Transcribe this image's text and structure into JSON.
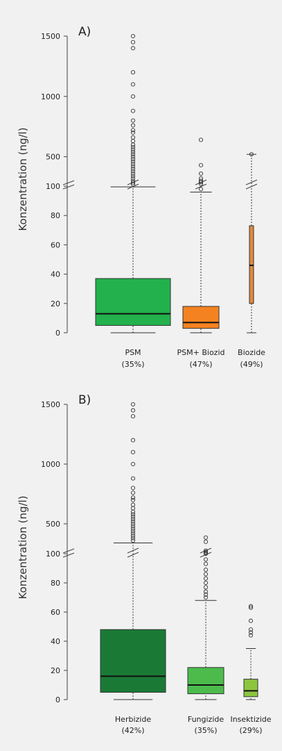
{
  "chart_data": [
    {
      "type": "boxplot",
      "panel_label": "A)",
      "ylabel": "Konzentration (ng/l)",
      "y_axis_broken": true,
      "y_lower_range": [
        0,
        100
      ],
      "y_upper_range": [
        250,
        1500
      ],
      "y_ticks_lower": [
        0,
        20,
        40,
        60,
        80,
        100
      ],
      "y_ticks_upper": [
        500,
        1000,
        1500
      ],
      "y_tick_labels_lower": [
        "0",
        "20",
        "40",
        "60",
        "80",
        "100"
      ],
      "y_tick_labels_upper": [
        "500",
        "1000",
        "1500"
      ],
      "categories": [
        {
          "name": "PSM",
          "percent": "(35%)",
          "color": "#22b14c",
          "min": 0,
          "q1": 5,
          "median": 13,
          "q3": 37,
          "whisker_high": 250,
          "outliers": [
            270,
            285,
            300,
            320,
            340,
            360,
            380,
            400,
            420,
            440,
            460,
            480,
            500,
            520,
            540,
            560,
            580,
            600,
            630,
            660,
            700,
            720,
            760,
            800,
            880,
            1000,
            1100,
            1200,
            1400,
            1450,
            1500
          ]
        },
        {
          "name": "PSM+ Biozid",
          "percent": "(47%)",
          "color": "#f58220",
          "min": 0,
          "q1": 3,
          "median": 7,
          "q3": 18,
          "whisker_high": 96,
          "outliers": [
            98,
            102,
            104,
            107,
            275,
            290,
            300,
            320,
            360,
            430,
            640
          ]
        },
        {
          "name": "Biozide",
          "percent": "(49%)",
          "color": "#e08a3c",
          "min": 0,
          "q1": 20,
          "median": 46,
          "q3": 73,
          "whisker_high": 520,
          "outliers": [
            520
          ]
        }
      ]
    },
    {
      "type": "boxplot",
      "panel_label": "B)",
      "ylabel": "Konzentration (ng/l)",
      "y_axis_broken": true,
      "y_lower_range": [
        0,
        100
      ],
      "y_upper_range": [
        250,
        1500
      ],
      "y_ticks_lower": [
        0,
        20,
        40,
        60,
        80,
        100
      ],
      "y_ticks_upper": [
        500,
        1000,
        1500
      ],
      "y_tick_labels_lower": [
        "0",
        "20",
        "40",
        "60",
        "80",
        "100"
      ],
      "y_tick_labels_upper": [
        "500",
        "1000",
        "1500"
      ],
      "categories": [
        {
          "name": "Herbizide",
          "percent": "(42%)",
          "color": "#1a7a35",
          "min": 0,
          "q1": 5,
          "median": 16,
          "q3": 48,
          "whisker_high": 340,
          "outliers": [
            360,
            380,
            400,
            420,
            440,
            460,
            480,
            500,
            520,
            540,
            560,
            580,
            600,
            630,
            660,
            700,
            720,
            760,
            800,
            880,
            1000,
            1100,
            1200,
            1400,
            1450,
            1500
          ]
        },
        {
          "name": "Fungizide",
          "percent": "(35%)",
          "color": "#4cbb4c",
          "min": 0,
          "q1": 4,
          "median": 10,
          "q3": 22,
          "whisker_high": 68,
          "outliers": [
            70,
            72,
            74,
            77,
            80,
            83,
            86,
            89,
            93,
            96,
            250,
            255,
            265,
            275,
            350,
            385
          ]
        },
        {
          "name": "Insektizide",
          "percent": "(29%)",
          "color": "#8cc63f",
          "min": 0,
          "q1": 2,
          "median": 6,
          "q3": 14,
          "whisker_high": 35,
          "outliers": [
            44,
            46,
            48,
            54,
            63,
            64
          ]
        }
      ]
    }
  ]
}
